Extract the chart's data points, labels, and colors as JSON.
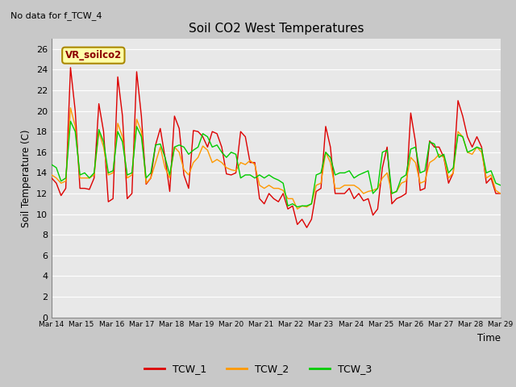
{
  "title": "Soil CO2 West Temperatures",
  "subtitle": "No data for f_TCW_4",
  "ylabel": "Soil Temperature (C)",
  "xlabel": "Time",
  "annotation": "VR_soilco2",
  "ylim": [
    0,
    27
  ],
  "yticks": [
    0,
    2,
    4,
    6,
    8,
    10,
    12,
    14,
    16,
    18,
    20,
    22,
    24,
    26
  ],
  "xtick_labels": [
    "Mar 14",
    "Mar 15",
    "Mar 16",
    "Mar 17",
    "Mar 18",
    "Mar 19",
    "Mar 20",
    "Mar 21",
    "Mar 22",
    "Mar 23",
    "Mar 24",
    "Mar 25",
    "Mar 26",
    "Mar 27",
    "Mar 28",
    "Mar 29"
  ],
  "legend": [
    "TCW_1",
    "TCW_2",
    "TCW_3"
  ],
  "colors": {
    "TCW_1": "#dd0000",
    "TCW_2": "#ff9900",
    "TCW_3": "#00cc00"
  },
  "fig_bg": "#c8c8c8",
  "plot_bg": "#e8e8e8",
  "TCW_1": [
    13.5,
    13.0,
    11.8,
    12.5,
    24.2,
    20.0,
    12.5,
    12.5,
    12.4,
    13.5,
    20.7,
    18.0,
    11.2,
    11.5,
    23.3,
    19.5,
    11.5,
    12.0,
    23.8,
    19.5,
    12.9,
    13.5,
    16.7,
    18.3,
    15.5,
    12.2,
    19.5,
    18.3,
    13.8,
    12.5,
    18.1,
    18.0,
    17.5,
    16.5,
    18.0,
    17.8,
    16.5,
    13.9,
    13.8,
    14.0,
    18.0,
    17.5,
    15.0,
    15.0,
    11.5,
    11.0,
    12.0,
    11.5,
    11.2,
    12.0,
    10.5,
    10.8,
    9.0,
    9.5,
    8.7,
    9.5,
    12.2,
    12.5,
    18.5,
    16.5,
    12.0,
    12.0,
    12.0,
    12.5,
    11.5,
    12.0,
    11.3,
    11.5,
    9.9,
    10.5,
    14.5,
    16.5,
    11.0,
    11.5,
    11.7,
    12.0,
    19.8,
    17.0,
    12.3,
    12.5,
    17.1,
    16.5,
    16.5,
    15.5,
    13.0,
    14.0,
    21.0,
    19.5,
    17.5,
    16.5,
    17.5,
    16.5,
    13.0,
    13.5,
    12.0,
    12.0
  ],
  "TCW_2": [
    13.8,
    13.5,
    13.0,
    13.2,
    20.3,
    18.5,
    13.5,
    13.5,
    13.5,
    13.8,
    18.0,
    16.5,
    13.8,
    14.0,
    18.8,
    17.5,
    13.5,
    13.8,
    19.2,
    18.0,
    13.0,
    13.5,
    15.0,
    16.5,
    14.5,
    13.5,
    16.5,
    16.0,
    14.3,
    13.8,
    15.0,
    15.5,
    16.6,
    16.2,
    15.0,
    15.3,
    15.0,
    14.5,
    14.3,
    14.2,
    15.0,
    14.8,
    15.2,
    14.8,
    12.8,
    12.5,
    12.8,
    12.5,
    12.5,
    12.3,
    11.5,
    11.5,
    10.5,
    10.8,
    10.7,
    11.0,
    12.8,
    13.0,
    16.0,
    15.0,
    12.5,
    12.5,
    12.8,
    12.8,
    12.8,
    12.5,
    12.0,
    12.2,
    12.3,
    12.5,
    13.5,
    14.0,
    12.0,
    12.2,
    13.0,
    13.2,
    15.5,
    15.0,
    13.0,
    13.2,
    15.0,
    15.3,
    15.8,
    15.5,
    13.5,
    14.0,
    18.0,
    17.5,
    16.0,
    15.8,
    16.5,
    16.0,
    13.5,
    13.8,
    12.3,
    12.0
  ],
  "TCW_3": [
    14.8,
    14.5,
    13.2,
    13.5,
    19.0,
    18.0,
    13.8,
    14.0,
    13.5,
    14.0,
    18.2,
    17.0,
    14.0,
    14.2,
    18.0,
    17.0,
    13.8,
    14.0,
    18.5,
    17.5,
    13.5,
    14.0,
    16.7,
    16.8,
    15.5,
    13.8,
    16.5,
    16.7,
    16.5,
    15.8,
    16.2,
    16.5,
    17.8,
    17.5,
    16.5,
    16.7,
    16.0,
    15.5,
    16.0,
    15.8,
    13.5,
    13.8,
    13.8,
    13.5,
    13.8,
    13.5,
    13.8,
    13.5,
    13.3,
    13.0,
    10.8,
    11.0,
    10.7,
    10.8,
    10.8,
    11.0,
    13.8,
    14.0,
    16.0,
    15.5,
    13.8,
    14.0,
    14.0,
    14.2,
    13.5,
    13.8,
    14.0,
    14.2,
    12.0,
    12.5,
    16.0,
    16.2,
    12.0,
    12.2,
    13.5,
    13.8,
    16.3,
    16.5,
    14.0,
    14.2,
    17.0,
    16.8,
    15.5,
    15.8,
    14.0,
    14.5,
    17.7,
    17.5,
    16.0,
    16.2,
    16.5,
    16.3,
    14.0,
    14.2,
    13.0,
    12.8
  ]
}
